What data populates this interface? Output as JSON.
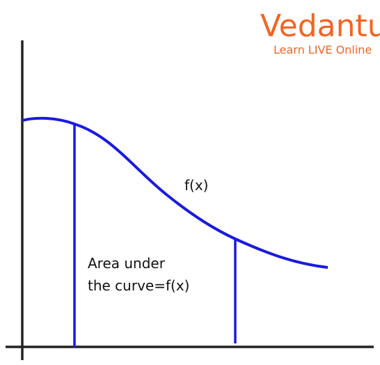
{
  "logo": {
    "brand": "Vedantu",
    "tagline": "Learn LIVE Online"
  },
  "curve_label": "f(x)",
  "area_label": {
    "line1": "Area under",
    "line2": "the curve=f(x)"
  }
}
